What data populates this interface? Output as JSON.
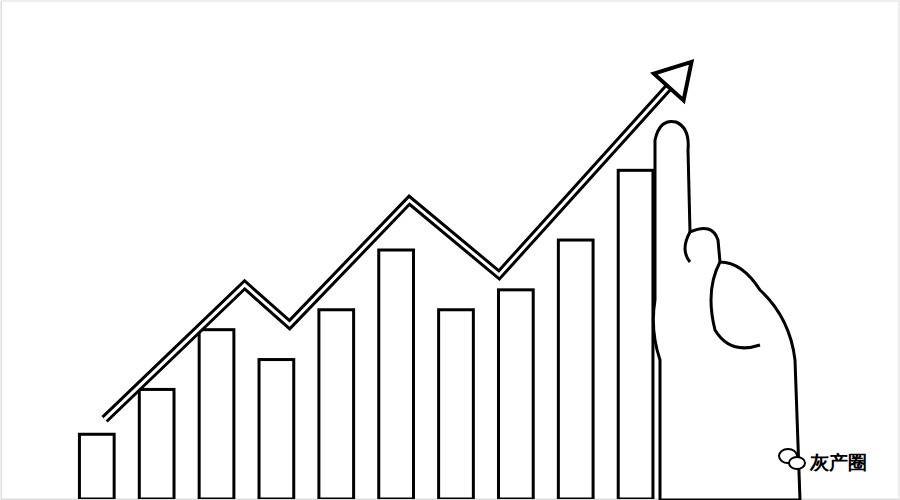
{
  "chart_data": {
    "type": "bar",
    "tick_labels": false,
    "xlim": [
      -1.6,
      13.4
    ],
    "ylim": [
      0,
      100
    ],
    "annotations": [
      "灰产圈"
    ],
    "series": [
      {
        "type": "bar",
        "color": "#000000",
        "x": [
          0,
          1,
          2,
          3,
          4,
          5,
          6,
          7,
          8,
          9
        ],
        "values": [
          13,
          22,
          34,
          28,
          38,
          50,
          38,
          42,
          52,
          66
        ]
      },
      {
        "type": "line",
        "color": "#000000",
        "marker": "arrow",
        "x": [
          0.13,
          2.47,
          3.22,
          5.22,
          6.72,
          9.8
        ],
        "values": [
          16,
          43,
          35,
          60,
          45,
          86
        ]
      }
    ]
  }
}
